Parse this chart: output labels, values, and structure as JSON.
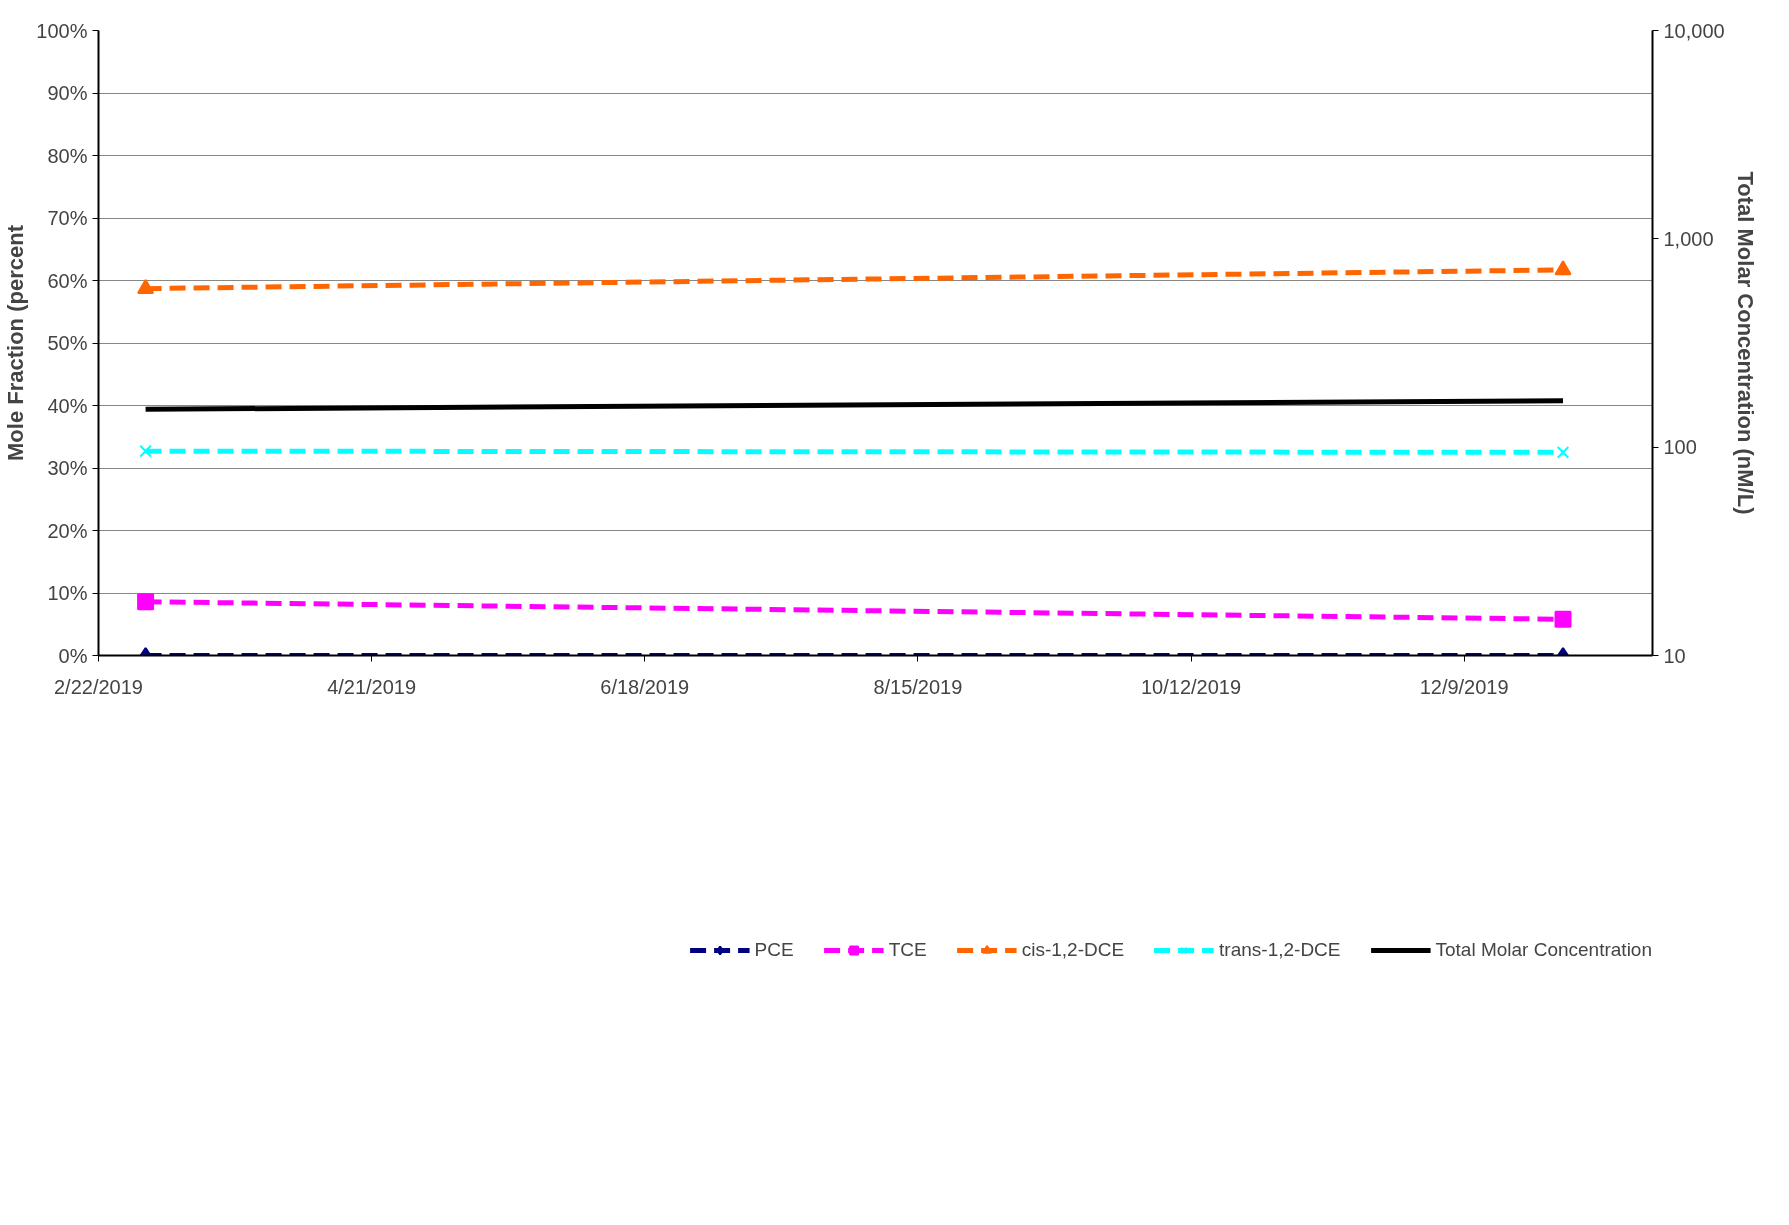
{
  "chart_data": {
    "type": "line",
    "ylabel": "Mole Fraction (percent",
    "y2label": "Total Molar Concentration (nM/L)",
    "x": [
      "2019-03-04",
      "2019-12-30"
    ],
    "xlim": [
      "2019-02-22",
      "2020-01-18"
    ],
    "xticks": [
      {
        "value": "2019-02-22",
        "label": "2/22/2019"
      },
      {
        "value": "2019-04-21",
        "label": "4/21/2019"
      },
      {
        "value": "2019-06-18",
        "label": "6/18/2019"
      },
      {
        "value": "2019-08-15",
        "label": "8/15/2019"
      },
      {
        "value": "2019-10-12",
        "label": "10/12/2019"
      },
      {
        "value": "2019-12-09",
        "label": "12/9/2019"
      }
    ],
    "ylim": [
      0,
      100
    ],
    "yticks": [
      {
        "value": 0,
        "label": "0%"
      },
      {
        "value": 10,
        "label": "10%"
      },
      {
        "value": 20,
        "label": "20%"
      },
      {
        "value": 30,
        "label": "30%"
      },
      {
        "value": 40,
        "label": "40%"
      },
      {
        "value": 50,
        "label": "50%"
      },
      {
        "value": 60,
        "label": "60%"
      },
      {
        "value": 70,
        "label": "70%"
      },
      {
        "value": 80,
        "label": "80%"
      },
      {
        "value": 90,
        "label": "90%"
      },
      {
        "value": 100,
        "label": "100%"
      }
    ],
    "y2lim": [
      10,
      10000
    ],
    "y2ticks": [
      {
        "value": 10,
        "label": "10"
      },
      {
        "value": 100,
        "label": "100"
      },
      {
        "value": 1000,
        "label": "1,000"
      },
      {
        "value": 10000,
        "label": "10,000"
      }
    ],
    "log": "y2",
    "grid": "y",
    "legend": "bottom",
    "series": [
      {
        "name": "PCE",
        "color": "#000080",
        "values": [
          0,
          0
        ],
        "marker": "diamond",
        "line_style": "dashed"
      },
      {
        "name": "TCE",
        "color": "#ff00ff",
        "values": [
          8.6,
          5.8
        ],
        "marker": "square",
        "line_style": "dashed"
      },
      {
        "name": "cis-1,2-DCE",
        "color": "#ff6600",
        "values": [
          58.7,
          61.7
        ],
        "marker": "triangle",
        "line_style": "dashed"
      },
      {
        "name": "trans-1,2-DCE",
        "color": "#00ffff",
        "values": [
          32.7,
          32.5
        ],
        "marker": "cross",
        "line_style": "dashed"
      },
      {
        "name": "Total Molar Concentration",
        "color": "#000000",
        "values": [
          152,
          167
        ],
        "marker": "none",
        "line_style": "solid",
        "axis": "y2"
      }
    ]
  }
}
